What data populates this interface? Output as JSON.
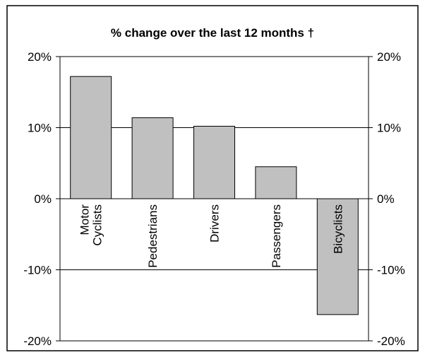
{
  "chart_data": {
    "type": "bar",
    "title": "% change over the last 12 months †",
    "xlabel": "",
    "ylabel": "",
    "categories": [
      [
        "Motor",
        "Cyclists"
      ],
      [
        "Pedestrians"
      ],
      [
        "Drivers"
      ],
      [
        "Passengers"
      ],
      [
        "Bicyclists"
      ]
    ],
    "values": [
      17.2,
      11.4,
      10.2,
      4.5,
      -16.3
    ],
    "ylim": [
      -20,
      20
    ],
    "yticks": [
      -20,
      -10,
      0,
      10,
      20
    ],
    "ytick_labels": [
      "-20%",
      "-10%",
      "0%",
      "10%",
      "20%"
    ],
    "y_axis_both_sides": true,
    "grid": "horizontal",
    "legend": "none",
    "bar_color": "#c0c0c0",
    "bar_edge_color": "#000000"
  }
}
